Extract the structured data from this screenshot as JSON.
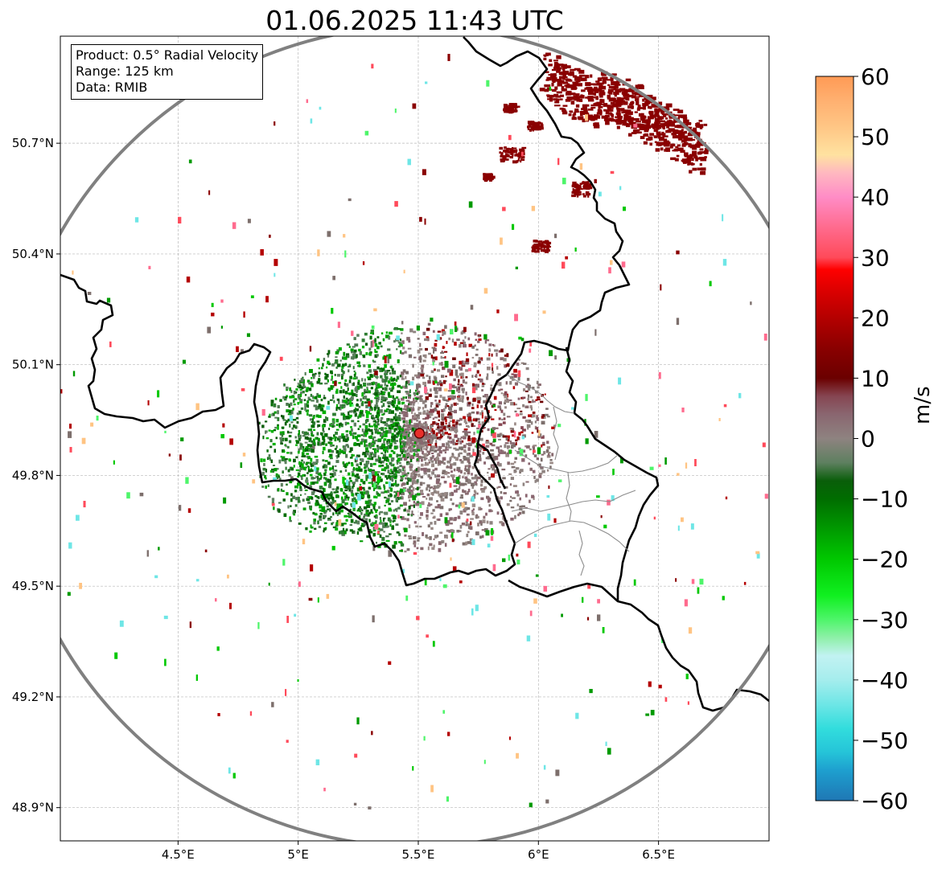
{
  "title": "01.06.2025 11:43 UTC",
  "info": {
    "product": "Product: 0.5° Radial Velocity",
    "range": "Range: 125 km",
    "source": "Data: RMIB"
  },
  "map": {
    "lon_range": [
      4.01,
      6.96
    ],
    "lat_range": [
      48.81,
      50.99
    ],
    "x_ticks": [
      {
        "v": 4.5,
        "label": "4.5°E"
      },
      {
        "v": 5.0,
        "label": "5°E"
      },
      {
        "v": 5.5,
        "label": "5.5°E"
      },
      {
        "v": 6.0,
        "label": "6°E"
      },
      {
        "v": 6.5,
        "label": "6.5°E"
      }
    ],
    "y_ticks": [
      {
        "v": 48.9,
        "label": "48.9°N"
      },
      {
        "v": 49.2,
        "label": "49.2°N"
      },
      {
        "v": 49.5,
        "label": "49.5°N"
      },
      {
        "v": 49.8,
        "label": "49.8°N"
      },
      {
        "v": 50.1,
        "label": "50.1°N"
      },
      {
        "v": 50.4,
        "label": "50.4°N"
      },
      {
        "v": 50.7,
        "label": "50.7°N"
      }
    ],
    "radar_site": {
      "lon": 5.505,
      "lat": 49.914
    },
    "range_ring_color": "#808080",
    "border_color": "#000000"
  },
  "colorbar": {
    "unit": "m/s",
    "vmin": -60,
    "vmax": 60,
    "ticks": [
      {
        "v": 60,
        "label": "60"
      },
      {
        "v": 50,
        "label": "50"
      },
      {
        "v": 40,
        "label": "40"
      },
      {
        "v": 30,
        "label": "30"
      },
      {
        "v": 20,
        "label": "20"
      },
      {
        "v": 10,
        "label": "10"
      },
      {
        "v": 0,
        "label": "0"
      },
      {
        "v": -10,
        "label": "−10"
      },
      {
        "v": -20,
        "label": "−20"
      },
      {
        "v": -30,
        "label": "−30"
      },
      {
        "v": -40,
        "label": "−40"
      },
      {
        "v": -50,
        "label": "−50"
      },
      {
        "v": -60,
        "label": "−60"
      }
    ],
    "stops": [
      {
        "v": -60,
        "color": "#1f77b4"
      },
      {
        "v": -55,
        "color": "#1e9fcf"
      },
      {
        "v": -52,
        "color": "#25c4d8"
      },
      {
        "v": -48,
        "color": "#32dddd"
      },
      {
        "v": -44,
        "color": "#6ee6e6"
      },
      {
        "v": -40,
        "color": "#a5eded"
      },
      {
        "v": -36,
        "color": "#c2f2f2"
      },
      {
        "v": -33,
        "color": "#8ef0a8"
      },
      {
        "v": -30,
        "color": "#4ef56a"
      },
      {
        "v": -26,
        "color": "#10f020"
      },
      {
        "v": -20,
        "color": "#00c800"
      },
      {
        "v": -15,
        "color": "#009a00"
      },
      {
        "v": -10,
        "color": "#006d00"
      },
      {
        "v": -7,
        "color": "#0a5e0a"
      },
      {
        "v": -4,
        "color": "#5e8060"
      },
      {
        "v": 0,
        "color": "#8e8380"
      },
      {
        "v": 4,
        "color": "#8a6670"
      },
      {
        "v": 7,
        "color": "#864652"
      },
      {
        "v": 10,
        "color": "#6b0000"
      },
      {
        "v": 15,
        "color": "#8a0000"
      },
      {
        "v": 20,
        "color": "#b40000"
      },
      {
        "v": 25,
        "color": "#e00000"
      },
      {
        "v": 28,
        "color": "#ff0000"
      },
      {
        "v": 30,
        "color": "#ff4a5a"
      },
      {
        "v": 35,
        "color": "#ff6b8e"
      },
      {
        "v": 40,
        "color": "#ff8cc6"
      },
      {
        "v": 44,
        "color": "#ffb8c0"
      },
      {
        "v": 47,
        "color": "#ffe2a0"
      },
      {
        "v": 52,
        "color": "#ffc483"
      },
      {
        "v": 56,
        "color": "#ffb070"
      },
      {
        "v": 60,
        "color": "#ff9a55"
      }
    ]
  }
}
